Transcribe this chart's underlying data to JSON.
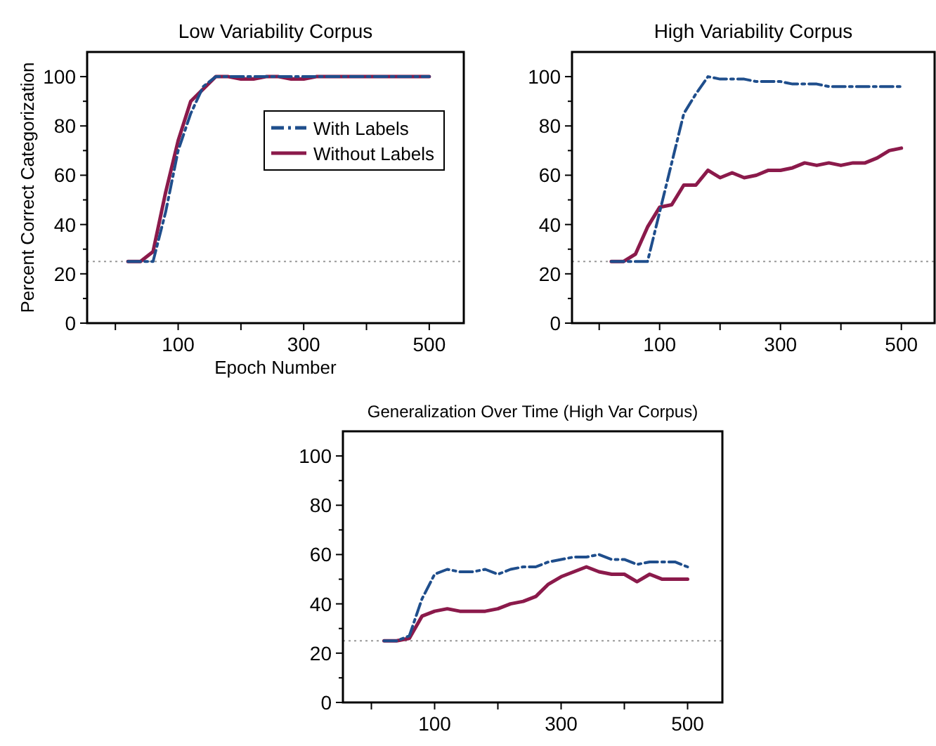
{
  "chart_data": [
    {
      "type": "line",
      "title": "Low Variability Corpus",
      "xlabel": "Epoch Number",
      "ylabel": "Percent Correct Categorization",
      "x": [
        20,
        40,
        60,
        80,
        100,
        120,
        140,
        160,
        180,
        200,
        220,
        240,
        260,
        280,
        300,
        320,
        340,
        360,
        380,
        400,
        420,
        440,
        460,
        480,
        500
      ],
      "xlim": [
        -45,
        555
      ],
      "xticks": [
        {
          "value": 0,
          "label": null
        },
        100,
        {
          "value": 200,
          "label": null
        },
        300,
        {
          "value": 400,
          "label": null
        },
        500
      ],
      "ylim": [
        0,
        110
      ],
      "yticks": [
        0,
        20,
        40,
        60,
        80,
        100
      ],
      "legend": "right",
      "grid": false,
      "ref_lines": [
        {
          "axis": "y",
          "value": 25,
          "label": null,
          "color": "#999999",
          "line_style": "dotted"
        }
      ],
      "series": [
        {
          "name": "With Labels",
          "color": "#1f4e8c",
          "line_style": "dashed",
          "values": [
            25,
            25,
            25,
            45,
            70,
            85,
            96,
            100,
            100,
            100,
            100,
            100,
            100,
            100,
            100,
            100,
            100,
            100,
            100,
            100,
            100,
            100,
            100,
            100,
            100
          ]
        },
        {
          "name": "Without Labels",
          "color": "#8b1a4b",
          "line_style": "solid",
          "values": [
            25,
            25,
            29,
            53,
            74,
            90,
            95,
            100,
            100,
            99,
            99,
            100,
            100,
            99,
            99,
            100,
            100,
            100,
            100,
            100,
            100,
            100,
            100,
            100,
            100
          ]
        }
      ]
    },
    {
      "type": "line",
      "title": "High Variability Corpus",
      "x": [
        20,
        40,
        60,
        80,
        100,
        120,
        140,
        160,
        180,
        200,
        220,
        240,
        260,
        280,
        300,
        320,
        340,
        360,
        380,
        400,
        420,
        440,
        460,
        480,
        500
      ],
      "xlim": [
        -45,
        555
      ],
      "xticks": [
        {
          "value": 0,
          "label": null
        },
        100,
        {
          "value": 200,
          "label": null
        },
        300,
        {
          "value": 400,
          "label": null
        },
        500
      ],
      "ylim": [
        0,
        110
      ],
      "yticks": [
        0,
        20,
        40,
        60,
        80,
        100
      ],
      "grid": false,
      "ref_lines": [
        {
          "axis": "y",
          "value": 25,
          "label": null,
          "color": "#999999",
          "line_style": "dotted"
        }
      ],
      "series": [
        {
          "color": "#1f4e8c",
          "line_style": "dashed",
          "values": [
            25,
            25,
            25,
            25,
            45,
            65,
            85,
            93,
            100,
            99,
            99,
            99,
            98,
            98,
            98,
            97,
            97,
            97,
            96,
            96,
            96,
            96,
            96,
            96,
            96
          ]
        },
        {
          "color": "#8b1a4b",
          "line_style": "solid",
          "values": [
            25,
            25,
            28,
            39,
            47,
            48,
            56,
            56,
            62,
            59,
            61,
            59,
            60,
            62,
            62,
            63,
            65,
            64,
            65,
            64,
            65,
            65,
            67,
            70,
            71
          ]
        }
      ]
    },
    {
      "type": "line",
      "title": "Generalization Over Time (High Var Corpus)",
      "x": [
        20,
        40,
        60,
        80,
        100,
        120,
        140,
        160,
        180,
        200,
        220,
        240,
        260,
        280,
        300,
        320,
        340,
        360,
        380,
        400,
        420,
        440,
        460,
        480,
        500
      ],
      "xlim": [
        -45,
        555
      ],
      "xticks": [
        {
          "value": 0,
          "label": null
        },
        100,
        {
          "value": 200,
          "label": null
        },
        300,
        {
          "value": 400,
          "label": null
        },
        500
      ],
      "ylim": [
        0,
        110
      ],
      "yticks": [
        0,
        20,
        40,
        60,
        80,
        100
      ],
      "grid": false,
      "ref_lines": [
        {
          "axis": "y",
          "value": 25,
          "label": null,
          "color": "#999999",
          "line_style": "dotted"
        }
      ],
      "series": [
        {
          "color": "#1f4e8c",
          "line_style": "dashed",
          "values": [
            25,
            25,
            27,
            42,
            52,
            54,
            53,
            53,
            54,
            52,
            54,
            55,
            55,
            57,
            58,
            59,
            59,
            60,
            58,
            58,
            56,
            57,
            57,
            57,
            55
          ]
        },
        {
          "color": "#8b1a4b",
          "line_style": "solid",
          "values": [
            25,
            25,
            26,
            35,
            37,
            38,
            37,
            37,
            37,
            38,
            40,
            41,
            43,
            48,
            51,
            53,
            55,
            53,
            52,
            52,
            49,
            52,
            50,
            50,
            50
          ]
        }
      ]
    }
  ]
}
